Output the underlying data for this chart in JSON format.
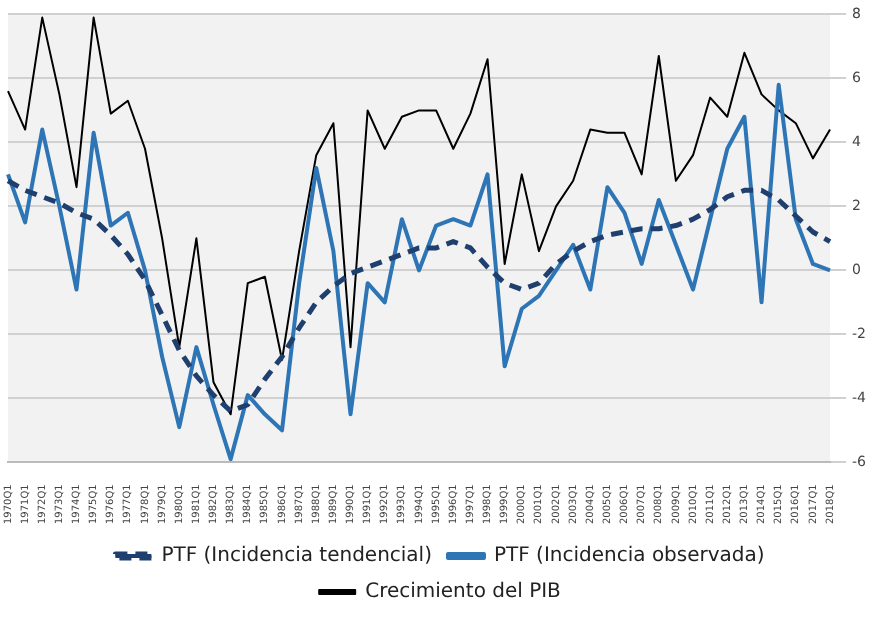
{
  "chart_data": {
    "type": "line",
    "categories": [
      "1970Q1",
      "1971Q1",
      "1972Q1",
      "1973Q1",
      "1974Q1",
      "1975Q1",
      "1976Q1",
      "1977Q1",
      "1978Q1",
      "1979Q1",
      "1980Q1",
      "1981Q1",
      "1982Q1",
      "1983Q1",
      "1984Q1",
      "1985Q1",
      "1986Q1",
      "1987Q1",
      "1988Q1",
      "1989Q1",
      "1990Q1",
      "1991Q1",
      "1992Q1",
      "1993Q1",
      "1994Q1",
      "1995Q1",
      "1996Q1",
      "1997Q1",
      "1998Q1",
      "1999Q1",
      "2000Q1",
      "2001Q1",
      "2002Q1",
      "2003Q1",
      "2004Q1",
      "2005Q1",
      "2006Q1",
      "2007Q1",
      "2008Q1",
      "2009Q1",
      "2010Q1",
      "2011Q1",
      "2012Q1",
      "2013Q1",
      "2014Q1",
      "2015Q1",
      "2016Q1",
      "2017Q1",
      "2018Q1"
    ],
    "series": [
      {
        "name": "PTF (Incidencia tendencial)",
        "color": "#1f3f6e",
        "line_style": "dashed",
        "values": [
          2.8,
          2.5,
          2.3,
          2.1,
          1.8,
          1.6,
          1.1,
          0.5,
          -0.3,
          -1.4,
          -2.5,
          -3.3,
          -3.9,
          -4.4,
          -4.2,
          -3.4,
          -2.7,
          -1.8,
          -1.0,
          -0.5,
          -0.1,
          0.1,
          0.3,
          0.5,
          0.7,
          0.7,
          0.9,
          0.7,
          0.1,
          -0.4,
          -0.6,
          -0.4,
          0.2,
          0.6,
          0.9,
          1.1,
          1.2,
          1.3,
          1.3,
          1.4,
          1.6,
          1.9,
          2.3,
          2.5,
          2.5,
          2.2,
          1.7,
          1.2,
          0.9
        ]
      },
      {
        "name": "PTF (Incidencia observada)",
        "color": "#2e75b6",
        "line_style": "solid",
        "values": [
          3.0,
          1.5,
          4.4,
          2.0,
          -0.6,
          4.3,
          1.4,
          1.8,
          0.0,
          -2.7,
          -4.9,
          -2.4,
          -4.2,
          -5.9,
          -3.9,
          -4.5,
          -5.0,
          -0.4,
          3.2,
          0.6,
          -4.5,
          -0.4,
          -1.0,
          1.6,
          0.0,
          1.4,
          1.6,
          1.4,
          3.0,
          -3.0,
          -1.2,
          -0.8,
          0.0,
          0.8,
          -0.6,
          2.6,
          1.8,
          0.2,
          2.2,
          0.8,
          -0.6,
          1.6,
          3.8,
          4.8,
          -1.0,
          5.8,
          1.6,
          0.2,
          0.0
        ]
      },
      {
        "name": "Crecimiento del PIB",
        "color": "#000000",
        "line_style": "solid",
        "values": [
          5.6,
          4.4,
          7.9,
          5.5,
          2.6,
          7.9,
          4.9,
          5.3,
          3.8,
          1.0,
          -2.4,
          1.0,
          -3.5,
          -4.5,
          -0.4,
          -0.2,
          -2.8,
          0.6,
          3.6,
          4.6,
          -2.4,
          5.0,
          3.8,
          4.8,
          5.0,
          5.0,
          3.8,
          4.9,
          6.6,
          0.2,
          3.0,
          0.6,
          2.0,
          2.8,
          4.4,
          4.3,
          4.3,
          3.0,
          6.7,
          2.8,
          3.6,
          5.4,
          4.8,
          6.8,
          5.5,
          5.0,
          4.6,
          3.5,
          4.4
        ]
      }
    ],
    "ylim": [
      -6,
      8
    ],
    "yticks": [
      -6,
      -4,
      -2,
      0,
      2,
      4,
      6,
      8
    ],
    "grid": "y",
    "legend": "bottom",
    "marker": "none"
  }
}
